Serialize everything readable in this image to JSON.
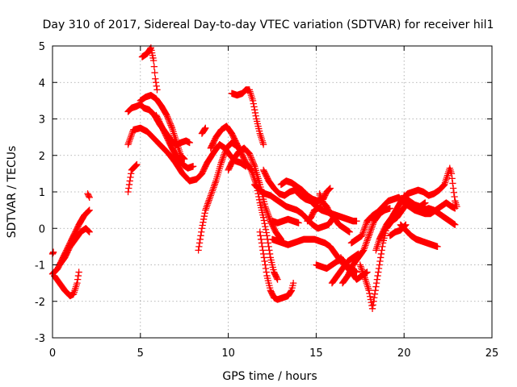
{
  "chart_data": {
    "type": "scatter",
    "title": "Day 310 of 2017, Sidereal Day-to-day VTEC variation (SDTVAR) for receiver hil1",
    "xlabel": "GPS time / hours",
    "ylabel": "SDTVAR / TECUs",
    "xlim": [
      0,
      25
    ],
    "ylim": [
      -3,
      5
    ],
    "x_ticks": [
      "0",
      "5",
      "10",
      "15",
      "20",
      "25"
    ],
    "y_ticks": [
      "-3",
      "-2",
      "-1",
      "0",
      "1",
      "2",
      "3",
      "4",
      "5"
    ],
    "x_tick_values": [
      0,
      5,
      10,
      15,
      20,
      25
    ],
    "y_tick_values": [
      -3,
      -2,
      -1,
      0,
      1,
      2,
      3,
      4,
      5
    ],
    "grid": true,
    "marker": "+",
    "color": "#ff0000",
    "tracks": [
      [
        [
          0.0,
          -0.7
        ],
        [
          0.05,
          -0.65
        ]
      ],
      [
        [
          0.0,
          -1.25
        ],
        [
          0.3,
          -1.1
        ],
        [
          0.6,
          -0.8
        ],
        [
          0.9,
          -0.5
        ],
        [
          1.2,
          -0.2
        ],
        [
          1.5,
          0.1
        ],
        [
          1.8,
          0.35
        ],
        [
          2.1,
          0.5
        ]
      ],
      [
        [
          0.1,
          -1.3
        ],
        [
          0.4,
          -1.5
        ],
        [
          0.7,
          -1.7
        ],
        [
          1.0,
          -1.85
        ],
        [
          1.2,
          -1.8
        ],
        [
          1.4,
          -1.5
        ],
        [
          1.5,
          -1.2
        ]
      ],
      [
        [
          0.4,
          -1.0
        ],
        [
          0.7,
          -0.8
        ],
        [
          1.0,
          -0.5
        ],
        [
          1.3,
          -0.3
        ],
        [
          1.6,
          -0.1
        ],
        [
          1.9,
          0.0
        ],
        [
          2.1,
          -0.1
        ]
      ],
      [
        [
          2.0,
          0.95
        ],
        [
          2.1,
          0.85
        ]
      ],
      [
        [
          4.3,
          1.0
        ],
        [
          4.4,
          1.3
        ],
        [
          4.5,
          1.6
        ],
        [
          4.7,
          1.7
        ],
        [
          4.8,
          1.75
        ]
      ],
      [
        [
          4.3,
          2.3
        ],
        [
          4.6,
          2.7
        ],
        [
          5.0,
          2.75
        ],
        [
          5.4,
          2.65
        ],
        [
          5.8,
          2.45
        ],
        [
          6.2,
          2.25
        ],
        [
          6.6,
          2.05
        ],
        [
          7.0,
          1.8
        ],
        [
          7.4,
          1.5
        ],
        [
          7.8,
          1.3
        ],
        [
          8.2,
          1.35
        ],
        [
          8.5,
          1.5
        ],
        [
          8.8,
          1.8
        ],
        [
          9.2,
          2.1
        ],
        [
          9.5,
          2.3
        ],
        [
          9.8,
          2.2
        ],
        [
          10.1,
          2.0
        ],
        [
          10.4,
          1.85
        ],
        [
          10.7,
          1.8
        ],
        [
          11.0,
          1.7
        ]
      ],
      [
        [
          4.3,
          3.2
        ],
        [
          4.5,
          3.3
        ],
        [
          4.8,
          3.35
        ],
        [
          5.0,
          3.4
        ],
        [
          5.2,
          3.3
        ],
        [
          5.5,
          3.25
        ],
        [
          5.8,
          3.1
        ],
        [
          6.1,
          2.85
        ],
        [
          6.4,
          2.65
        ],
        [
          6.7,
          2.45
        ],
        [
          7.0,
          2.3
        ],
        [
          7.3,
          2.35
        ],
        [
          7.6,
          2.4
        ],
        [
          7.8,
          2.35
        ]
      ],
      [
        [
          5.0,
          3.5
        ],
        [
          5.3,
          3.6
        ],
        [
          5.6,
          3.65
        ],
        [
          5.9,
          3.55
        ],
        [
          6.2,
          3.35
        ],
        [
          6.5,
          3.1
        ],
        [
          6.8,
          2.75
        ],
        [
          7.1,
          2.3
        ],
        [
          7.3,
          2.0
        ],
        [
          7.5,
          1.9
        ]
      ],
      [
        [
          5.9,
          3.1
        ],
        [
          6.2,
          2.8
        ],
        [
          6.5,
          2.5
        ],
        [
          6.8,
          2.2
        ],
        [
          7.1,
          1.95
        ],
        [
          7.4,
          1.75
        ],
        [
          7.7,
          1.65
        ],
        [
          8.0,
          1.7
        ]
      ],
      [
        [
          5.1,
          4.7
        ],
        [
          5.4,
          4.8
        ],
        [
          5.6,
          4.95
        ],
        [
          5.75,
          4.6
        ],
        [
          5.85,
          4.1
        ],
        [
          5.95,
          3.8
        ]
      ],
      [
        [
          8.3,
          -0.6
        ],
        [
          8.5,
          0.0
        ],
        [
          8.7,
          0.5
        ],
        [
          9.0,
          0.9
        ],
        [
          9.3,
          1.3
        ],
        [
          9.6,
          1.8
        ],
        [
          9.9,
          2.2
        ],
        [
          10.2,
          2.35
        ],
        [
          10.5,
          2.25
        ],
        [
          10.8,
          2.1
        ]
      ],
      [
        [
          8.5,
          2.6
        ],
        [
          8.7,
          2.75
        ]
      ],
      [
        [
          9.0,
          2.2
        ],
        [
          9.3,
          2.5
        ],
        [
          9.6,
          2.7
        ],
        [
          9.9,
          2.8
        ],
        [
          10.2,
          2.6
        ],
        [
          10.5,
          2.3
        ],
        [
          10.8,
          2.0
        ],
        [
          11.0,
          1.8
        ],
        [
          11.3,
          1.6
        ],
        [
          11.6,
          1.2
        ],
        [
          11.8,
          0.7
        ],
        [
          12.0,
          0.3
        ],
        [
          12.2,
          -0.2
        ],
        [
          12.4,
          -0.8
        ],
        [
          12.6,
          -1.2
        ],
        [
          12.8,
          -1.4
        ]
      ],
      [
        [
          10.0,
          1.6
        ],
        [
          10.3,
          1.9
        ],
        [
          10.6,
          2.1
        ],
        [
          10.9,
          2.2
        ],
        [
          11.2,
          2.05
        ],
        [
          11.5,
          1.7
        ],
        [
          11.8,
          1.2
        ],
        [
          12.1,
          0.6
        ],
        [
          12.4,
          0.2
        ],
        [
          12.7,
          -0.1
        ],
        [
          13.0,
          -0.3
        ]
      ],
      [
        [
          10.2,
          3.7
        ],
        [
          10.5,
          3.65
        ],
        [
          10.8,
          3.7
        ],
        [
          11.0,
          3.8
        ],
        [
          11.2,
          3.8
        ],
        [
          11.4,
          3.5
        ],
        [
          11.6,
          3.0
        ],
        [
          11.8,
          2.6
        ],
        [
          12.0,
          2.3
        ]
      ],
      [
        [
          11.8,
          -0.1
        ],
        [
          12.0,
          -0.7
        ],
        [
          12.2,
          -1.3
        ],
        [
          12.4,
          -1.7
        ],
        [
          12.6,
          -1.9
        ],
        [
          12.8,
          -1.95
        ],
        [
          13.1,
          -1.9
        ],
        [
          13.4,
          -1.85
        ],
        [
          13.6,
          -1.7
        ],
        [
          13.7,
          -1.5
        ]
      ],
      [
        [
          11.5,
          1.2
        ],
        [
          11.8,
          1.05
        ],
        [
          12.1,
          0.95
        ],
        [
          12.4,
          0.9
        ],
        [
          12.7,
          0.8
        ],
        [
          13.0,
          0.7
        ],
        [
          13.3,
          0.6
        ],
        [
          13.6,
          0.55
        ],
        [
          13.9,
          0.5
        ],
        [
          14.2,
          0.4
        ],
        [
          14.5,
          0.25
        ],
        [
          14.8,
          0.1
        ],
        [
          15.1,
          0.0
        ],
        [
          15.4,
          0.05
        ],
        [
          15.7,
          0.1
        ],
        [
          16.0,
          0.3
        ],
        [
          16.3,
          0.1
        ],
        [
          16.6,
          0.0
        ],
        [
          16.9,
          -0.1
        ]
      ],
      [
        [
          12.0,
          1.6
        ],
        [
          12.3,
          1.3
        ],
        [
          12.6,
          1.1
        ],
        [
          12.9,
          0.95
        ],
        [
          13.2,
          0.9
        ],
        [
          13.5,
          1.0
        ],
        [
          13.8,
          1.05
        ],
        [
          14.1,
          0.9
        ],
        [
          14.4,
          0.8
        ],
        [
          14.7,
          0.75
        ],
        [
          15.0,
          0.6
        ],
        [
          15.3,
          0.5
        ],
        [
          15.6,
          0.45
        ],
        [
          15.9,
          0.4
        ],
        [
          16.2,
          0.35
        ],
        [
          16.5,
          0.3
        ],
        [
          16.8,
          0.25
        ],
        [
          17.1,
          0.2
        ],
        [
          17.3,
          0.2
        ]
      ],
      [
        [
          13.0,
          1.2
        ],
        [
          13.3,
          1.3
        ],
        [
          13.6,
          1.25
        ],
        [
          13.9,
          1.15
        ],
        [
          14.2,
          1.05
        ],
        [
          14.5,
          0.9
        ],
        [
          14.8,
          0.8
        ],
        [
          15.1,
          0.75
        ],
        [
          15.4,
          0.8
        ],
        [
          15.6,
          1.0
        ],
        [
          15.8,
          1.1
        ]
      ],
      [
        [
          15.2,
          0.95
        ],
        [
          15.4,
          0.7
        ],
        [
          15.6,
          0.6
        ],
        [
          15.8,
          0.4
        ],
        [
          16.0,
          0.3
        ]
      ],
      [
        [
          14.5,
          0.2
        ],
        [
          14.7,
          0.3
        ],
        [
          14.9,
          0.5
        ],
        [
          15.1,
          0.55
        ],
        [
          15.3,
          0.6
        ]
      ],
      [
        [
          12.5,
          0.2
        ],
        [
          12.8,
          0.15
        ],
        [
          13.1,
          0.2
        ],
        [
          13.4,
          0.25
        ],
        [
          13.7,
          0.2
        ],
        [
          14.0,
          0.15
        ]
      ],
      [
        [
          12.5,
          -0.3
        ],
        [
          12.8,
          -0.35
        ],
        [
          13.1,
          -0.4
        ],
        [
          13.4,
          -0.45
        ],
        [
          13.7,
          -0.4
        ],
        [
          14.0,
          -0.35
        ],
        [
          14.3,
          -0.3
        ],
        [
          14.6,
          -0.3
        ],
        [
          14.9,
          -0.3
        ],
        [
          15.2,
          -0.35
        ],
        [
          15.5,
          -0.4
        ],
        [
          15.8,
          -0.5
        ],
        [
          16.1,
          -0.7
        ],
        [
          16.4,
          -0.9
        ],
        [
          16.7,
          -1.0
        ],
        [
          17.0,
          -1.1
        ],
        [
          17.3,
          -1.2
        ]
      ],
      [
        [
          15.0,
          -1.0
        ],
        [
          15.3,
          -1.05
        ],
        [
          15.6,
          -1.1
        ],
        [
          15.9,
          -1.0
        ],
        [
          16.2,
          -0.9
        ],
        [
          16.5,
          -0.85
        ]
      ],
      [
        [
          15.9,
          -1.5
        ],
        [
          16.2,
          -1.3
        ],
        [
          16.5,
          -1.1
        ],
        [
          16.8,
          -0.9
        ],
        [
          17.1,
          -0.8
        ],
        [
          17.4,
          -0.7
        ]
      ],
      [
        [
          16.4,
          -0.8
        ],
        [
          16.7,
          -1.05
        ],
        [
          17.0,
          -1.2
        ],
        [
          17.3,
          -1.4
        ],
        [
          17.6,
          -1.3
        ],
        [
          17.9,
          -1.2
        ]
      ],
      [
        [
          16.5,
          -1.5
        ],
        [
          16.8,
          -1.3
        ],
        [
          17.1,
          -1.0
        ],
        [
          17.4,
          -0.8
        ],
        [
          17.7,
          -0.6
        ],
        [
          18.0,
          -0.2
        ],
        [
          18.3,
          0.2
        ],
        [
          18.6,
          0.4
        ],
        [
          18.9,
          0.5
        ],
        [
          19.2,
          0.55
        ]
      ],
      [
        [
          17.5,
          -1.0
        ],
        [
          17.8,
          -1.4
        ],
        [
          18.0,
          -1.7
        ],
        [
          18.2,
          -2.2
        ],
        [
          18.4,
          -1.6
        ],
        [
          18.6,
          -1.0
        ],
        [
          18.8,
          -0.4
        ],
        [
          19.0,
          0.0
        ],
        [
          19.3,
          0.2
        ],
        [
          19.6,
          0.3
        ],
        [
          19.9,
          0.5
        ],
        [
          20.2,
          0.7
        ],
        [
          20.5,
          0.6
        ],
        [
          20.8,
          0.55
        ],
        [
          21.1,
          0.5
        ],
        [
          21.4,
          0.55
        ],
        [
          21.7,
          0.5
        ],
        [
          22.0,
          0.4
        ],
        [
          22.3,
          0.3
        ],
        [
          22.6,
          0.2
        ],
        [
          22.9,
          0.1
        ]
      ],
      [
        [
          17.0,
          -0.4
        ],
        [
          17.3,
          -0.3
        ],
        [
          17.6,
          -0.2
        ],
        [
          17.9,
          0.2
        ],
        [
          18.2,
          0.35
        ],
        [
          18.5,
          0.45
        ],
        [
          18.8,
          0.6
        ],
        [
          19.1,
          0.75
        ],
        [
          19.4,
          0.8
        ],
        [
          19.7,
          0.85
        ],
        [
          20.0,
          0.7
        ],
        [
          20.3,
          0.6
        ],
        [
          20.6,
          0.5
        ],
        [
          20.9,
          0.45
        ],
        [
          21.2,
          0.4
        ],
        [
          21.5,
          0.4
        ],
        [
          21.8,
          0.5
        ],
        [
          22.1,
          0.6
        ],
        [
          22.4,
          0.7
        ],
        [
          22.7,
          0.6
        ],
        [
          22.9,
          0.55
        ]
      ],
      [
        [
          18.4,
          -0.6
        ],
        [
          18.6,
          -0.3
        ],
        [
          18.8,
          -0.1
        ],
        [
          19.0,
          0.1
        ],
        [
          19.3,
          0.3
        ],
        [
          19.6,
          0.55
        ],
        [
          19.9,
          0.8
        ],
        [
          20.2,
          0.95
        ],
        [
          20.5,
          1.0
        ],
        [
          20.8,
          1.05
        ],
        [
          21.1,
          1.0
        ],
        [
          21.4,
          0.9
        ],
        [
          21.7,
          0.95
        ],
        [
          22.0,
          1.05
        ],
        [
          22.3,
          1.2
        ],
        [
          22.5,
          1.5
        ],
        [
          22.6,
          1.65
        ],
        [
          22.7,
          1.5
        ],
        [
          22.8,
          1.1
        ],
        [
          22.9,
          0.75
        ],
        [
          23.0,
          0.6
        ]
      ],
      [
        [
          20.0,
          0.9
        ],
        [
          20.3,
          0.75
        ],
        [
          20.6,
          0.65
        ],
        [
          20.9,
          0.6
        ],
        [
          21.2,
          0.7
        ]
      ],
      [
        [
          19.8,
          0.1
        ],
        [
          20.1,
          -0.05
        ],
        [
          20.4,
          -0.2
        ],
        [
          20.7,
          -0.3
        ],
        [
          21.0,
          -0.35
        ],
        [
          21.3,
          -0.4
        ],
        [
          21.6,
          -0.45
        ],
        [
          21.9,
          -0.5
        ]
      ],
      [
        [
          19.2,
          -0.2
        ],
        [
          19.5,
          -0.1
        ],
        [
          19.8,
          -0.05
        ],
        [
          20.1,
          0.1
        ]
      ]
    ]
  }
}
